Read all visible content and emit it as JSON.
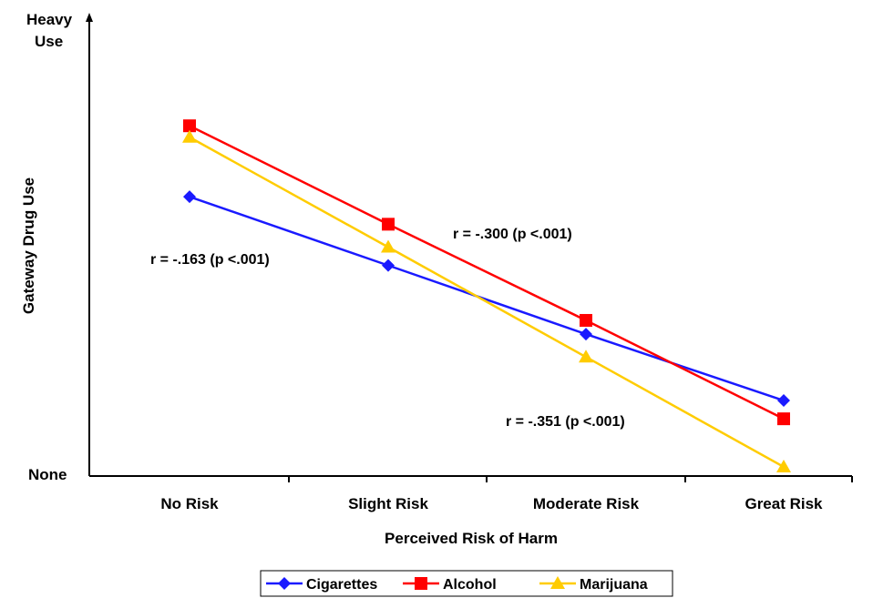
{
  "chart_data": {
    "type": "line",
    "title": "",
    "xlabel": "Perceived Risk of Harm",
    "ylabel": "Gateway Drug Use",
    "categories": [
      "No Risk",
      "Slight Risk",
      "Moderate Risk",
      "Great Risk"
    ],
    "y_tick_labels": {
      "top_line1": "Heavy",
      "top_line2": "Use",
      "bottom": "None"
    },
    "ylim": [
      0,
      100
    ],
    "grid": false,
    "legend_position": "bottom",
    "series": [
      {
        "name": "Cigarettes",
        "color": "#1a1aff",
        "marker": "diamond",
        "values": [
          61,
          46,
          31,
          16.5
        ]
      },
      {
        "name": "Alcohol",
        "color": "#ff0000",
        "marker": "square",
        "values": [
          76.5,
          55,
          34,
          12.5
        ]
      },
      {
        "name": "Marijuana",
        "color": "#ffcc00",
        "marker": "triangle",
        "values": [
          74,
          50,
          26,
          2
        ]
      }
    ],
    "annotations": [
      {
        "text": "r = -.163 (p <.001)",
        "series": "Cigarettes"
      },
      {
        "text": "r = -.300 (p <.001)",
        "series": "Alcohol"
      },
      {
        "text": "r = -.351 (p <.001)",
        "series": "Marijuana"
      }
    ]
  }
}
